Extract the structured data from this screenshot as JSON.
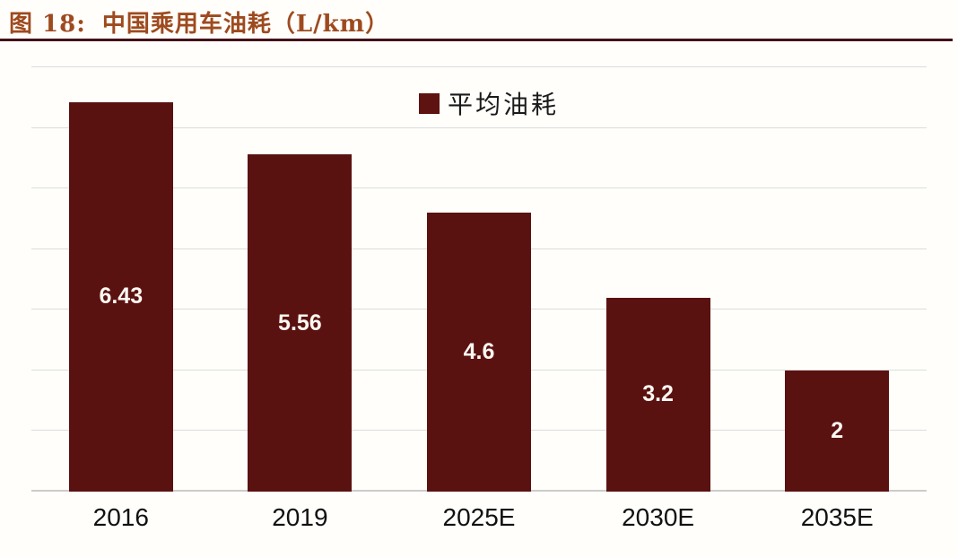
{
  "header": {
    "figure_label": "图 18:",
    "title": "中国乘用车油耗（L/km）",
    "accent_color": "#9e4a1f",
    "rule_color": "#44101a"
  },
  "legend": {
    "label": "平均油耗",
    "marker_color": "#5f1311"
  },
  "chart_data": {
    "type": "bar",
    "title": "中国乘用车油耗（L/km）",
    "categories": [
      "2016",
      "2019",
      "2025E",
      "2030E",
      "2035E"
    ],
    "values": [
      6.43,
      5.56,
      4.6,
      3.2,
      2
    ],
    "value_labels": [
      "6.43",
      "5.56",
      "4.6",
      "3.2",
      "2"
    ],
    "series_name": "平均油耗",
    "xlabel": "",
    "ylabel": "",
    "ylim": [
      0,
      7
    ],
    "grid_step": 1,
    "grid": true,
    "y_tick_labels_visible": false,
    "legend_position": "top-center",
    "bar_color": "#5a1211",
    "value_label_color": "#fdf8f2"
  }
}
